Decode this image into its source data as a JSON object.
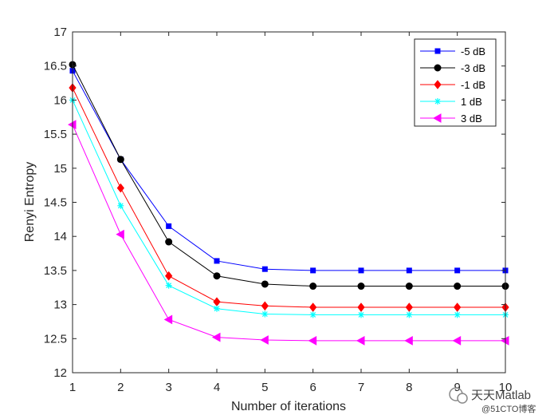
{
  "chart_data": {
    "type": "line",
    "xlabel": "Number of iterations",
    "ylabel": "Renyi Entropy",
    "xlim": [
      1,
      10
    ],
    "ylim": [
      12,
      17
    ],
    "x_ticks": [
      1,
      2,
      3,
      4,
      5,
      6,
      7,
      8,
      9,
      10
    ],
    "y_ticks": [
      12,
      12.5,
      13,
      13.5,
      14,
      14.5,
      15,
      15.5,
      16,
      16.5,
      17
    ],
    "grid": false,
    "legend_position": "top-right",
    "x": [
      1,
      2,
      3,
      4,
      5,
      6,
      7,
      8,
      9,
      10
    ],
    "series": [
      {
        "name": "-5 dB",
        "color": "#0000ff",
        "marker": "square",
        "values": [
          16.43,
          15.13,
          14.15,
          13.64,
          13.52,
          13.5,
          13.5,
          13.5,
          13.5,
          13.5
        ]
      },
      {
        "name": "-3 dB",
        "color": "#000000",
        "marker": "circle",
        "values": [
          16.52,
          15.13,
          13.92,
          13.42,
          13.3,
          13.27,
          13.27,
          13.27,
          13.27,
          13.27
        ]
      },
      {
        "name": "-1 dB",
        "color": "#ff0000",
        "marker": "diamond",
        "values": [
          16.18,
          14.71,
          13.42,
          13.04,
          12.98,
          12.96,
          12.96,
          12.96,
          12.96,
          12.96
        ]
      },
      {
        "name": "1 dB",
        "color": "#00ffff",
        "marker": "asterisk",
        "values": [
          16.0,
          14.45,
          13.28,
          12.94,
          12.86,
          12.85,
          12.85,
          12.85,
          12.85,
          12.85
        ]
      },
      {
        "name": "3 dB",
        "color": "#ff00ff",
        "marker": "triangle-left",
        "values": [
          15.64,
          14.03,
          12.78,
          12.52,
          12.48,
          12.47,
          12.47,
          12.47,
          12.47,
          12.47
        ]
      }
    ]
  },
  "watermark": {
    "line1": "天天Matlab",
    "line2": "@51CTO博客"
  }
}
